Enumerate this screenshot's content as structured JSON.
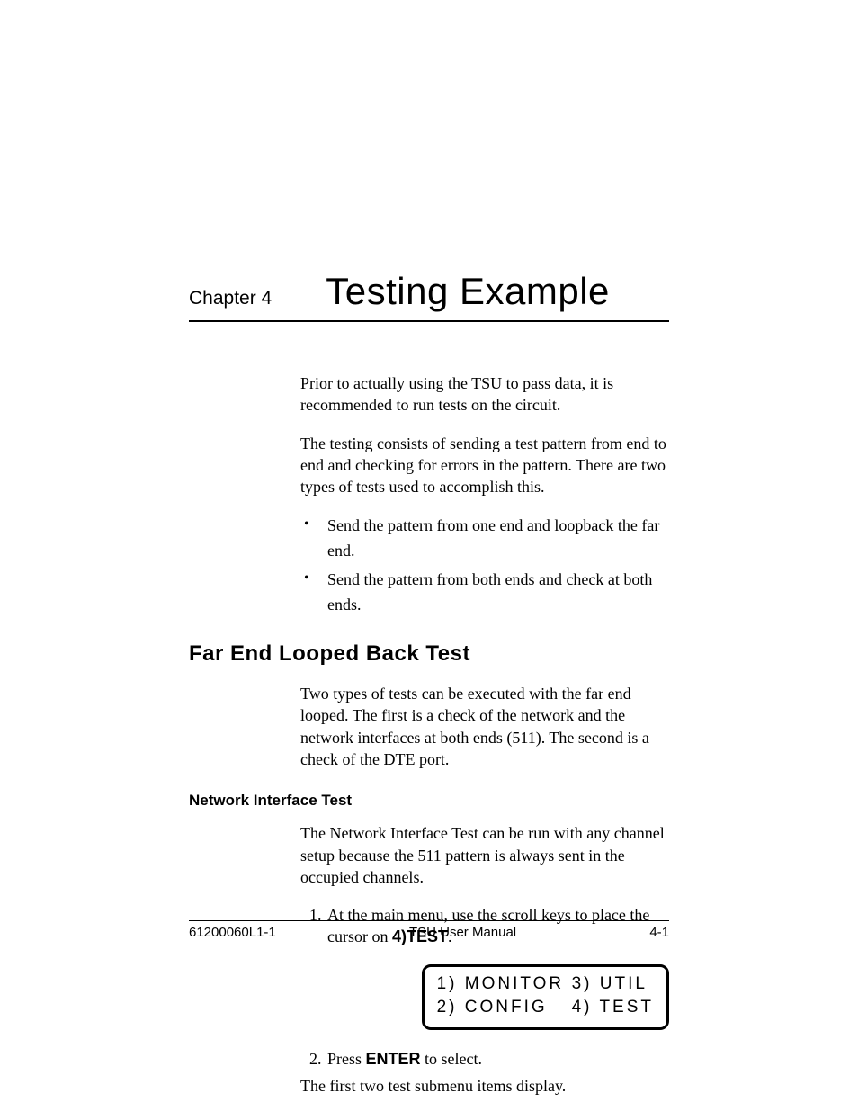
{
  "chapter": {
    "label": "Chapter 4",
    "title": "Testing Example"
  },
  "intro": {
    "p1": "Prior to actually using the TSU to pass data, it is recommended to run tests on the circuit.",
    "p2": "The testing consists of sending a test pattern from end to end and checking for errors in the pattern. There are two types of tests used to accomplish this."
  },
  "bullets": [
    "Send the pattern from one end and loopback the far end.",
    "Send the pattern from both ends and check at both ends."
  ],
  "section": {
    "heading": "Far End Looped Back Test",
    "p1": "Two types of tests can be executed with the far end looped. The first is a check of the network and the network interfaces at both ends (511). The second is a check of the DTE port."
  },
  "subsection": {
    "heading": "Network Interface Test",
    "p1": "The Network Interface Test can be run with any channel setup because the 511 pattern is always sent in the occupied channels."
  },
  "steps": {
    "s1_prefix": "At the main menu, use the scroll keys to place the cursor on ",
    "s1_bold": "4)TEST",
    "s1_suffix": ".",
    "s2_prefix": "Press ",
    "s2_bold": "ENTER",
    "s2_suffix": " to select."
  },
  "lcd": {
    "r1c1": "1) MONITOR",
    "r1c2": "3) UTIL",
    "r2c1": "2) CONFIG",
    "r2c2": "4) TEST"
  },
  "note": "The first two test submenu items display.",
  "footer": {
    "left": "61200060L1-1",
    "center": "TSU User Manual",
    "right": "4-1"
  }
}
